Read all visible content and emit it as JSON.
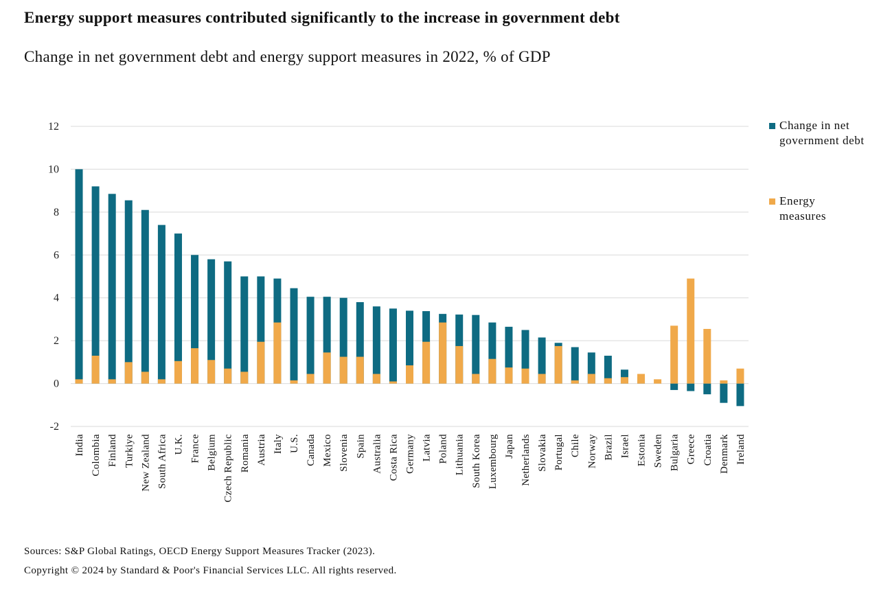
{
  "title": "Energy support measures contributed significantly to the increase in government debt",
  "subtitle": "Change in net government debt and energy support measures in 2022, % of GDP",
  "legend": {
    "debt": "Change in net government debt",
    "energy": "Energy measures"
  },
  "footer": {
    "sources": "Sources: S&P Global Ratings, OECD Energy Support Measures Tracker (2023).",
    "copyright": "Copyright © 2024 by Standard & Poor's Financial Services LLC. All rights reserved."
  },
  "colors": {
    "debt": "#0e6b82",
    "energy": "#f0a94a",
    "grid": "#d9d9d9"
  },
  "chart_data": {
    "type": "bar",
    "stacked": true,
    "title": "Energy support measures contributed significantly to the increase in government debt",
    "subtitle": "Change in net government debt and energy support measures in 2022, % of GDP",
    "ylim": [
      -2,
      12
    ],
    "yticks": [
      -2,
      0,
      2,
      4,
      6,
      8,
      10,
      12
    ],
    "grid": true,
    "legend_position": "right",
    "categories": [
      "India",
      "Colombia",
      "Finland",
      "Turkiye",
      "New Zealand",
      "South Africa",
      "U.K.",
      "France",
      "Belgium",
      "Czech Republic",
      "Romania",
      "Austria",
      "Italy",
      "U.S.",
      "Canada",
      "Mexico",
      "Slovenia",
      "Spain",
      "Australia",
      "Costa Rica",
      "Germany",
      "Latvia",
      "Poland",
      "Lithuania",
      "South Korea",
      "Luxembourg",
      "Japan",
      "Netherlands",
      "Slovakia",
      "Portugal",
      "Chile",
      "Norway",
      "Brazil",
      "Israel",
      "Estonia",
      "Sweden",
      "Bulgaria",
      "Greece",
      "Croatia",
      "Denmark",
      "Ireland"
    ],
    "series": [
      {
        "name": "Change in net government debt",
        "color": "#0e6b82",
        "values": [
          10.0,
          9.2,
          8.85,
          8.55,
          8.1,
          7.4,
          7.0,
          6.0,
          5.8,
          5.7,
          5.0,
          5.0,
          4.9,
          4.45,
          4.05,
          4.05,
          4.0,
          3.8,
          3.6,
          3.5,
          3.4,
          3.38,
          3.25,
          3.22,
          3.2,
          2.85,
          2.65,
          2.5,
          2.15,
          1.9,
          1.7,
          1.45,
          1.3,
          0.65,
          0.3,
          0.0,
          -0.3,
          -0.35,
          -0.5,
          -0.9,
          -1.05
        ]
      },
      {
        "name": "Energy measures",
        "color": "#f0a94a",
        "values": [
          0.2,
          1.3,
          0.2,
          1.0,
          0.55,
          0.2,
          1.05,
          1.65,
          1.1,
          0.7,
          0.55,
          1.95,
          2.85,
          0.15,
          0.45,
          1.45,
          1.25,
          1.25,
          0.45,
          0.1,
          0.85,
          1.95,
          2.85,
          1.75,
          0.45,
          1.15,
          0.75,
          0.7,
          0.45,
          1.75,
          0.15,
          0.45,
          0.25,
          0.3,
          0.45,
          0.2,
          2.7,
          4.9,
          2.55,
          0.15,
          0.7
        ]
      }
    ]
  }
}
